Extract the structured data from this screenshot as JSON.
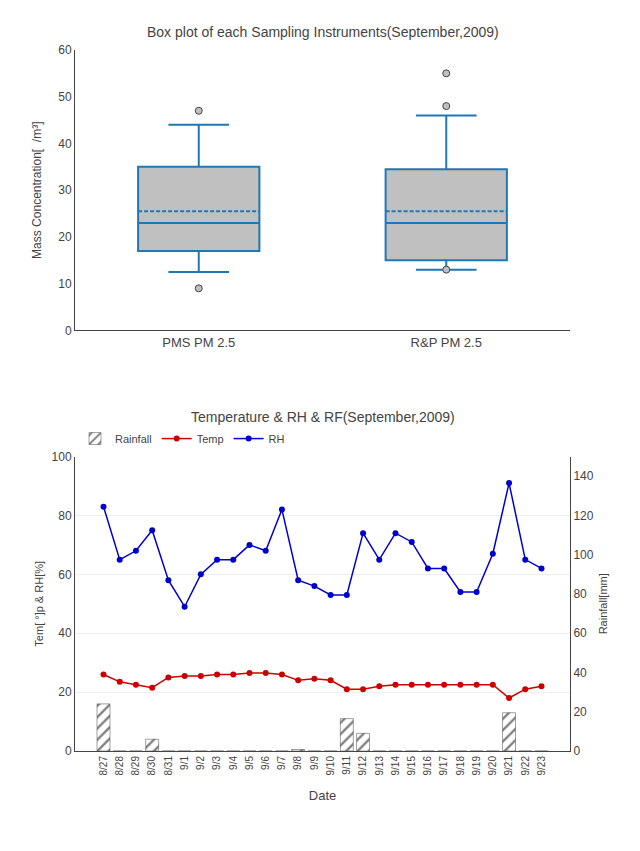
{
  "chart_data": [
    {
      "type": "box",
      "title": "Box plot of each Sampling Instruments(September,2009)",
      "y_label": "Mass Concentration[  /m³]",
      "categories": [
        "PMS PM 2.5",
        "R&P PM 2.5"
      ],
      "stats": [
        {
          "whislo": 12.5,
          "q1": 17.0,
          "median": 23.0,
          "q3": 35.0,
          "whishi": 44.0,
          "mean": 25.5,
          "fliers": [
            9.0,
            47.0
          ]
        },
        {
          "whislo": 13.0,
          "q1": 15.0,
          "median": 23.0,
          "q3": 34.5,
          "whishi": 46.0,
          "mean": 25.5,
          "fliers": [
            13.0,
            48.0,
            55.0
          ]
        }
      ],
      "color": "#c0c0c0",
      "ylim": [
        0,
        60
      ],
      "yticks": [
        0,
        10,
        20,
        30,
        40,
        50,
        60
      ],
      "grid": false
    },
    {
      "type": "line",
      "title": "Temperature & RH & RF(September,2009)",
      "x_label": "Date",
      "y_label": "Tem[ °]p & RH[%]",
      "y2_label": "Rainfall[mm]",
      "categories": [
        "8/27",
        "8/28",
        "8/29",
        "8/30",
        "8/31",
        "9/1",
        "9/2",
        "9/3",
        "9/4",
        "9/5",
        "9/6",
        "9/7",
        "9/8",
        "9/9",
        "9/10",
        "9/11",
        "9/12",
        "9/13",
        "9/14",
        "9/15",
        "9/16",
        "9/17",
        "9/18",
        "9/19",
        "9/20",
        "9/21",
        "9/22",
        "9/23"
      ],
      "series": [
        {
          "name": "Rainfall",
          "type": "bar",
          "color": "#808080",
          "values": [
            16,
            0,
            0,
            4,
            0,
            0,
            0,
            0,
            0,
            0,
            0,
            0,
            0.5,
            0,
            0,
            11,
            6,
            0,
            0,
            0,
            0,
            0,
            0,
            0,
            0,
            13,
            0,
            0
          ]
        },
        {
          "name": "Temp",
          "type": "line",
          "color": "#cc0000",
          "marker": "circle",
          "values": [
            26.0,
            23.5,
            22.5,
            21.5,
            25.0,
            25.5,
            25.5,
            26.0,
            26.0,
            26.5,
            26.5,
            26.0,
            24.0,
            24.5,
            24.0,
            21.0,
            21.0,
            22.0,
            22.5,
            22.5,
            22.5,
            22.5,
            22.5,
            22.5,
            22.5,
            18.0,
            21.0,
            22.0
          ]
        },
        {
          "name": "RH",
          "type": "line",
          "color": "#0000cc",
          "marker": "circle",
          "values": [
            83,
            65,
            68,
            75,
            58,
            49,
            60,
            65,
            65,
            70,
            68,
            82,
            58,
            56,
            53,
            53,
            74,
            65,
            74,
            71,
            62,
            62,
            54,
            54,
            67,
            91,
            65,
            62
          ]
        }
      ],
      "ylim": [
        0,
        100
      ],
      "yticks": [
        0,
        20,
        40,
        60,
        80,
        100
      ],
      "y2lim": [
        0,
        150
      ],
      "y2ticks": [
        0,
        20,
        40,
        60,
        80,
        100,
        120,
        140
      ],
      "grid": true,
      "legend": "upper left"
    }
  ]
}
